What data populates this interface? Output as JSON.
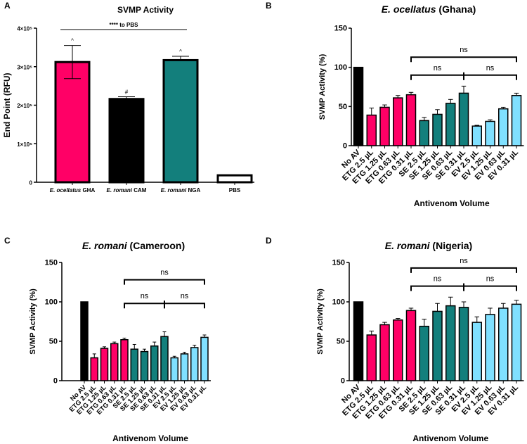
{
  "colors": {
    "etg": "#ff0066",
    "se": "#137f7c",
    "ev": "#80e0ff",
    "none": "#000000",
    "pbs": "#ffffff"
  },
  "chart_data": [
    {
      "panel": "A",
      "type": "bar",
      "title": "SVMP Activity",
      "ylabel": "End Point (RFU)",
      "xlabel": "",
      "ylim": [
        0,
        400000
      ],
      "yticks": [
        "0",
        "1×10⁵",
        "2×10⁵",
        "3×10⁵",
        "4×10⁵"
      ],
      "categories": [
        [
          "E. ocellatus",
          " GHA"
        ],
        [
          "E. romani",
          " CAM"
        ],
        [
          "E. romani",
          " NGA"
        ],
        [
          "",
          "PBS"
        ]
      ],
      "values": [
        312000,
        216000,
        317000,
        18000
      ],
      "errors": [
        43000,
        6000,
        10000,
        1000
      ],
      "fills": [
        "etg",
        "none",
        "se",
        "pbs"
      ],
      "marks": [
        "^",
        "#",
        "^",
        ""
      ],
      "annotation": "**** to PBS"
    },
    {
      "panel": "B",
      "type": "bar",
      "title_italic": "E. ocellatus",
      "title_rest": " (Ghana)",
      "ylabel": "SVMP Activity (%)",
      "xlabel": "Antivenom Volume",
      "ylim": [
        0,
        150
      ],
      "yticks": [
        "0",
        "50",
        "100",
        "150"
      ],
      "categories": [
        "No AV",
        "ETG 2.5 µL",
        "ETG 1.25 µL",
        "ETG 0.63 µL",
        "ETG 0.31 µL",
        "SE 2.5 µL",
        "SE 1.25 µL",
        "SE 0.63 µL",
        "SE 0.31 µL",
        "EV 2.5 µL",
        "EV 1.25 µL",
        "EV 0.63 µL",
        "EV 0.31 µL"
      ],
      "values": [
        100,
        39,
        49,
        61,
        65,
        32,
        40,
        54,
        67,
        25,
        31,
        47,
        64
      ],
      "errors": [
        0,
        9,
        3,
        3,
        3,
        4,
        6,
        5,
        9,
        1,
        2,
        2,
        3
      ],
      "brackets": [
        "ns",
        "ns",
        "ns"
      ]
    },
    {
      "panel": "C",
      "type": "bar",
      "title_italic": "E. romani",
      "title_rest": " (Cameroon)",
      "ylabel": "SVMP Activity (%)",
      "xlabel": "Antivenom Volume",
      "ylim": [
        0,
        150
      ],
      "yticks": [
        "0",
        "50",
        "100",
        "150"
      ],
      "categories": [
        "No AV",
        "ETG 2.5 µL",
        "ETG 1.25 µL",
        "ETG 0.63 µL",
        "ETG 0.31 µL",
        "SE 2.5 µL",
        "SE 1.25 µL",
        "SE 0.63 µL",
        "SE 0.31 µL",
        "EV 2.5 µL",
        "EV 1.25 µL",
        "EV 0.63 µL",
        "EV 0.31 µL"
      ],
      "values": [
        100,
        29,
        41,
        47,
        52,
        40,
        37,
        44,
        56,
        29,
        34,
        42,
        55
      ],
      "errors": [
        0,
        5,
        2,
        2,
        2,
        6,
        3,
        5,
        6,
        2,
        2,
        3,
        3
      ],
      "brackets": [
        "ns",
        "ns",
        "ns"
      ]
    },
    {
      "panel": "D",
      "type": "bar",
      "title_italic": "E. romani",
      "title_rest": " (Nigeria)",
      "ylabel": "SVMP Activity (%)",
      "xlabel": "Antivenom Volume",
      "ylim": [
        0,
        150
      ],
      "yticks": [
        "0",
        "50",
        "100",
        "150"
      ],
      "categories": [
        "No AV",
        "ETG 2.5 µL",
        "ETG 1.25 µL",
        "ETG 0.63 µL",
        "ETG 0.31 µL",
        "SE 2.5 µL",
        "SE 1.25 µL",
        "SE 0.63 µL",
        "SE 0.31 µL",
        "EV 2.5 µL",
        "EV 1.25 µL",
        "EV 0.63 µL",
        "EV 0.31 µL"
      ],
      "values": [
        100,
        58,
        71,
        77,
        89,
        69,
        88,
        95,
        93,
        74,
        84,
        92,
        97
      ],
      "errors": [
        0,
        5,
        3,
        2,
        3,
        9,
        10,
        11,
        7,
        7,
        8,
        6,
        5
      ],
      "brackets": [
        "ns",
        "ns",
        "ns"
      ]
    }
  ]
}
